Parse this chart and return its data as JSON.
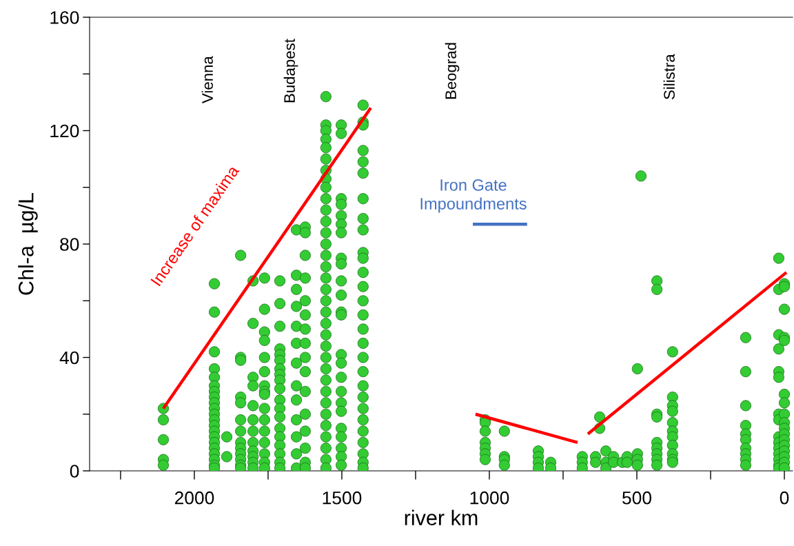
{
  "chart_data": {
    "type": "scatter",
    "xlabel": "river km",
    "ylabel": "Chl-a  µg/L",
    "marker": "circle",
    "xlim": [
      2355,
      -28
    ],
    "ylim": [
      0,
      160
    ],
    "xticks": [
      {
        "value": 2250,
        "label": null
      },
      2000,
      {
        "value": 1750,
        "label": null
      },
      1500,
      {
        "value": 1250,
        "label": null
      },
      1000,
      {
        "value": 750,
        "label": null
      },
      500,
      {
        "value": 250,
        "label": null
      },
      0
    ],
    "yticks": [
      0,
      {
        "value": 20,
        "label": null
      },
      40,
      {
        "value": 60,
        "label": null
      },
      80,
      {
        "value": 100,
        "label": null
      },
      120,
      {
        "value": 140,
        "label": null
      },
      160
    ],
    "annotations": [
      "Vienna",
      "Budapest",
      "Beograd",
      "Silistra"
    ],
    "series": [
      {
        "color": "#33cc33",
        "x": [
          2105,
          2105,
          2105,
          2105,
          2105,
          1932,
          1932,
          1932,
          1932,
          1932,
          1932,
          1932,
          1932,
          1932,
          1932,
          1932,
          1932,
          1932,
          1932,
          1932,
          1932,
          1932,
          1932,
          1932,
          1932,
          1932,
          1890,
          1890,
          1843,
          1843,
          1843,
          1843,
          1843,
          1843,
          1843,
          1843,
          1843,
          1843,
          1843,
          1843,
          1843,
          1801,
          1801,
          1801,
          1801,
          1801,
          1801,
          1801,
          1801,
          1801,
          1801,
          1801,
          1801,
          1762,
          1762,
          1762,
          1762,
          1762,
          1762,
          1762,
          1762,
          1762,
          1762,
          1762,
          1762,
          1762,
          1762,
          1762,
          1762,
          1710,
          1710,
          1710,
          1710,
          1710,
          1710,
          1710,
          1710,
          1710,
          1710,
          1710,
          1710,
          1710,
          1710,
          1710,
          1710,
          1710,
          1710,
          1710,
          1654,
          1654,
          1654,
          1654,
          1654,
          1654,
          1654,
          1654,
          1654,
          1654,
          1654,
          1654,
          1654,
          1624,
          1624,
          1624,
          1624,
          1624,
          1624,
          1624,
          1624,
          1624,
          1624,
          1624,
          1624,
          1624,
          1624,
          1624,
          1624,
          1554,
          1554,
          1554,
          1554,
          1554,
          1554,
          1554,
          1554,
          1554,
          1554,
          1554,
          1554,
          1554,
          1554,
          1554,
          1554,
          1554,
          1554,
          1554,
          1554,
          1554,
          1554,
          1554,
          1554,
          1554,
          1554,
          1554,
          1554,
          1554,
          1554,
          1554,
          1554,
          1554,
          1554,
          1502,
          1502,
          1502,
          1502,
          1502,
          1502,
          1502,
          1502,
          1502,
          1502,
          1502,
          1502,
          1502,
          1502,
          1502,
          1502,
          1502,
          1502,
          1502,
          1502,
          1502,
          1502,
          1502,
          1502,
          1428,
          1428,
          1428,
          1428,
          1428,
          1428,
          1428,
          1428,
          1428,
          1428,
          1428,
          1428,
          1428,
          1428,
          1428,
          1428,
          1428,
          1428,
          1428,
          1428,
          1428,
          1428,
          1428,
          1428,
          1428,
          1428,
          1428,
          1428,
          1014,
          1014,
          1014,
          1014,
          1014,
          1014,
          1014,
          949,
          949,
          949,
          949,
          834,
          834,
          834,
          834,
          792,
          792,
          685,
          685,
          685,
          640,
          640,
          626,
          626,
          605,
          605,
          605,
          579,
          579,
          549,
          533,
          533,
          498,
          498,
          498,
          498,
          486,
          432,
          432,
          432,
          432,
          432,
          432,
          432,
          432,
          432,
          379,
          379,
          379,
          379,
          379,
          379,
          379,
          379,
          379,
          379,
          379,
          131,
          131,
          131,
          131,
          131,
          131,
          131,
          131,
          131,
          131,
          19,
          19,
          19,
          19,
          19,
          19,
          19,
          19,
          19,
          19,
          19,
          19,
          19,
          19,
          19,
          0,
          0,
          0,
          0,
          0,
          0,
          0,
          0,
          0,
          0,
          0,
          0,
          0,
          0,
          0,
          0,
          0
        ],
        "values": [
          22,
          18,
          11,
          4,
          2,
          66,
          56,
          42,
          36,
          33,
          30,
          28,
          26,
          24,
          22,
          20,
          18,
          16,
          14,
          12,
          10,
          8,
          6,
          4,
          2,
          1,
          12,
          5,
          76,
          40,
          39,
          26,
          24,
          18,
          14,
          10,
          8,
          6,
          4,
          2,
          1,
          67,
          52,
          33,
          30,
          23,
          18,
          14,
          10,
          7,
          5,
          3,
          1,
          68,
          57,
          49,
          46,
          40,
          35,
          30,
          28,
          27,
          22,
          18,
          14,
          10,
          6,
          3,
          1,
          67,
          59,
          51,
          43,
          41,
          39,
          36,
          34,
          32,
          29,
          25,
          22,
          19,
          15,
          12,
          9,
          6,
          3,
          1,
          85,
          69,
          64,
          58,
          51,
          45,
          38,
          30,
          25,
          18,
          12,
          6,
          1,
          86,
          84,
          76,
          68,
          60,
          55,
          50,
          45,
          40,
          35,
          28,
          20,
          14,
          8,
          3,
          1,
          132,
          122,
          120,
          117,
          114,
          110,
          106,
          103,
          100,
          96,
          92,
          88,
          84,
          80,
          76,
          72,
          68,
          64,
          60,
          56,
          52,
          48,
          44,
          40,
          36,
          32,
          28,
          24,
          20,
          16,
          12,
          8,
          4,
          1,
          122,
          119,
          96,
          94,
          90,
          87,
          84,
          75,
          73,
          67,
          62,
          56,
          55,
          41,
          38,
          33,
          28,
          24,
          21,
          15,
          12,
          8,
          5,
          2,
          129,
          123,
          122,
          113,
          109,
          105,
          96,
          89,
          85,
          77,
          75,
          70,
          65,
          60,
          55,
          50,
          45,
          40,
          35,
          30,
          26,
          22,
          18,
          14,
          10,
          6,
          3,
          1,
          18,
          17,
          14,
          10,
          8,
          6,
          4,
          14,
          5,
          4,
          2,
          7,
          5,
          3,
          1,
          3,
          1,
          5,
          3,
          1,
          5,
          3,
          19,
          15,
          7,
          3,
          1,
          5,
          3,
          3,
          5,
          3,
          36,
          6,
          4,
          2,
          104,
          67,
          64,
          20,
          19,
          10,
          8,
          6,
          4,
          2,
          42,
          26,
          23,
          21,
          17,
          14,
          12,
          9,
          6,
          4,
          3,
          47,
          35,
          23,
          16,
          13,
          11,
          8,
          6,
          4,
          2,
          75,
          64,
          48,
          43,
          35,
          33,
          20,
          18,
          12,
          10,
          8,
          6,
          4,
          2,
          1,
          66,
          65,
          57,
          47,
          46,
          27,
          24,
          20,
          17,
          15,
          13,
          11,
          9,
          7,
          5,
          3,
          1
        ]
      },
      {
        "type": "line",
        "marker": "none",
        "name": "Increase of maxima",
        "color": "#ff0000",
        "x": [
          2105,
          1402
        ],
        "values": [
          22,
          128
        ]
      },
      {
        "type": "line",
        "marker": "none",
        "color": "#ff0000",
        "x": [
          1047,
          701
        ],
        "values": [
          20,
          10
        ]
      },
      {
        "type": "line",
        "marker": "none",
        "color": "#ff0000",
        "x": [
          666,
          -7
        ],
        "values": [
          13,
          70
        ]
      },
      {
        "type": "line",
        "marker": "none",
        "name": "Iron Gate\nImpoundments",
        "color": "#4472c4",
        "x": [
          1056,
          872
        ],
        "values": [
          87,
          87
        ]
      }
    ]
  }
}
